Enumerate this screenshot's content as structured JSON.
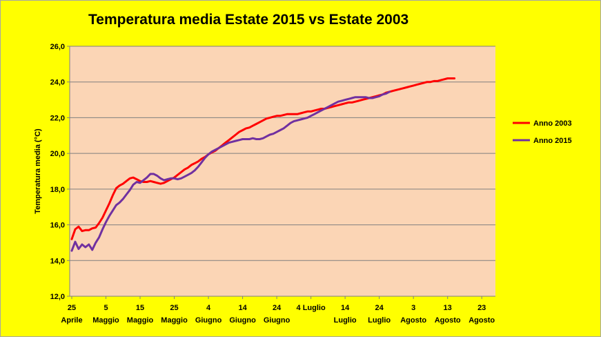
{
  "chart_data": {
    "type": "line",
    "title": "Temperatura media Estate 2015 vs Estate 2003",
    "ylabel": "Temperatura media  (°C)",
    "xlabel": "",
    "ylim": [
      12.0,
      26.0
    ],
    "yticks": [
      "12,0",
      "14,0",
      "16,0",
      "18,0",
      "20,0",
      "22,0",
      "24,0",
      "26,0"
    ],
    "xlim": [
      0,
      124
    ],
    "xticks": [
      {
        "day": 0,
        "line1": "25",
        "line2": "Aprile"
      },
      {
        "day": 10,
        "line1": "5",
        "line2": "Maggio"
      },
      {
        "day": 20,
        "line1": "15",
        "line2": "Maggio"
      },
      {
        "day": 30,
        "line1": "25",
        "line2": "Maggio"
      },
      {
        "day": 40,
        "line1": "4",
        "line2": "Giugno"
      },
      {
        "day": 50,
        "line1": "14",
        "line2": "Giugno"
      },
      {
        "day": 60,
        "line1": "24",
        "line2": "Giugno"
      },
      {
        "day": 70,
        "line1": "4 Luglio",
        "line2": ""
      },
      {
        "day": 80,
        "line1": "14",
        "line2": "Luglio"
      },
      {
        "day": 90,
        "line1": "24",
        "line2": "Luglio"
      },
      {
        "day": 100,
        "line1": "3",
        "line2": "Agosto"
      },
      {
        "day": 110,
        "line1": "13",
        "line2": "Agosto"
      },
      {
        "day": 120,
        "line1": "23",
        "line2": "Agosto"
      }
    ],
    "grid": true,
    "legend_position": "right",
    "series": [
      {
        "name": "Anno 2003",
        "color": "#ff0000",
        "points": [
          [
            0,
            15.2
          ],
          [
            1,
            15.75
          ],
          [
            2,
            15.9
          ],
          [
            3,
            15.65
          ],
          [
            4,
            15.7
          ],
          [
            5,
            15.7
          ],
          [
            6,
            15.8
          ],
          [
            7,
            15.85
          ],
          [
            8,
            16.1
          ],
          [
            9,
            16.4
          ],
          [
            10,
            16.8
          ],
          [
            11,
            17.2
          ],
          [
            12,
            17.65
          ],
          [
            13,
            18.05
          ],
          [
            14,
            18.2
          ],
          [
            15,
            18.3
          ],
          [
            16,
            18.45
          ],
          [
            17,
            18.6
          ],
          [
            18,
            18.65
          ],
          [
            19,
            18.55
          ],
          [
            20,
            18.45
          ],
          [
            21,
            18.4
          ],
          [
            22,
            18.4
          ],
          [
            23,
            18.45
          ],
          [
            24,
            18.4
          ],
          [
            25,
            18.35
          ],
          [
            26,
            18.3
          ],
          [
            27,
            18.35
          ],
          [
            28,
            18.45
          ],
          [
            29,
            18.55
          ],
          [
            30,
            18.65
          ],
          [
            31,
            18.8
          ],
          [
            32,
            18.95
          ],
          [
            33,
            19.1
          ],
          [
            34,
            19.2
          ],
          [
            35,
            19.35
          ],
          [
            36,
            19.45
          ],
          [
            37,
            19.55
          ],
          [
            38,
            19.7
          ],
          [
            39,
            19.8
          ],
          [
            40,
            19.95
          ],
          [
            41,
            20.05
          ],
          [
            42,
            20.15
          ],
          [
            43,
            20.3
          ],
          [
            44,
            20.45
          ],
          [
            45,
            20.6
          ],
          [
            46,
            20.75
          ],
          [
            47,
            20.9
          ],
          [
            48,
            21.05
          ],
          [
            49,
            21.2
          ],
          [
            50,
            21.3
          ],
          [
            51,
            21.4
          ],
          [
            52,
            21.45
          ],
          [
            53,
            21.55
          ],
          [
            54,
            21.65
          ],
          [
            55,
            21.75
          ],
          [
            56,
            21.85
          ],
          [
            57,
            21.95
          ],
          [
            58,
            22.0
          ],
          [
            59,
            22.05
          ],
          [
            60,
            22.1
          ],
          [
            61,
            22.1
          ],
          [
            62,
            22.15
          ],
          [
            63,
            22.2
          ],
          [
            64,
            22.2
          ],
          [
            65,
            22.2
          ],
          [
            66,
            22.2
          ],
          [
            67,
            22.25
          ],
          [
            68,
            22.3
          ],
          [
            69,
            22.35
          ],
          [
            70,
            22.35
          ],
          [
            71,
            22.4
          ],
          [
            72,
            22.45
          ],
          [
            73,
            22.5
          ],
          [
            74,
            22.5
          ],
          [
            75,
            22.55
          ],
          [
            76,
            22.6
          ],
          [
            77,
            22.65
          ],
          [
            78,
            22.7
          ],
          [
            79,
            22.75
          ],
          [
            80,
            22.8
          ],
          [
            81,
            22.85
          ],
          [
            82,
            22.85
          ],
          [
            83,
            22.9
          ],
          [
            84,
            22.95
          ],
          [
            85,
            23.0
          ],
          [
            86,
            23.05
          ],
          [
            87,
            23.1
          ],
          [
            88,
            23.15
          ],
          [
            89,
            23.2
          ],
          [
            90,
            23.25
          ],
          [
            91,
            23.3
          ],
          [
            92,
            23.4
          ],
          [
            93,
            23.45
          ],
          [
            94,
            23.5
          ],
          [
            95,
            23.55
          ],
          [
            96,
            23.6
          ],
          [
            97,
            23.65
          ],
          [
            98,
            23.7
          ],
          [
            99,
            23.75
          ],
          [
            100,
            23.8
          ],
          [
            101,
            23.85
          ],
          [
            102,
            23.9
          ],
          [
            103,
            23.95
          ],
          [
            104,
            24.0
          ],
          [
            105,
            24.0
          ],
          [
            106,
            24.05
          ],
          [
            107,
            24.05
          ],
          [
            108,
            24.1
          ],
          [
            109,
            24.15
          ],
          [
            110,
            24.2
          ],
          [
            111,
            24.2
          ],
          [
            112,
            24.2
          ]
        ]
      },
      {
        "name": "Anno 2015",
        "color": "#7030a0",
        "points": [
          [
            0,
            14.55
          ],
          [
            1,
            15.05
          ],
          [
            2,
            14.65
          ],
          [
            3,
            14.9
          ],
          [
            4,
            14.75
          ],
          [
            5,
            14.9
          ],
          [
            6,
            14.6
          ],
          [
            7,
            15.0
          ],
          [
            8,
            15.3
          ],
          [
            9,
            15.75
          ],
          [
            10,
            16.15
          ],
          [
            11,
            16.5
          ],
          [
            12,
            16.8
          ],
          [
            13,
            17.1
          ],
          [
            14,
            17.25
          ],
          [
            15,
            17.45
          ],
          [
            16,
            17.7
          ],
          [
            17,
            17.95
          ],
          [
            18,
            18.25
          ],
          [
            19,
            18.4
          ],
          [
            20,
            18.35
          ],
          [
            21,
            18.5
          ],
          [
            22,
            18.65
          ],
          [
            23,
            18.85
          ],
          [
            24,
            18.85
          ],
          [
            25,
            18.75
          ],
          [
            26,
            18.6
          ],
          [
            27,
            18.5
          ],
          [
            28,
            18.55
          ],
          [
            29,
            18.6
          ],
          [
            30,
            18.6
          ],
          [
            31,
            18.55
          ],
          [
            32,
            18.6
          ],
          [
            33,
            18.7
          ],
          [
            34,
            18.8
          ],
          [
            35,
            18.9
          ],
          [
            36,
            19.05
          ],
          [
            37,
            19.25
          ],
          [
            38,
            19.5
          ],
          [
            39,
            19.75
          ],
          [
            40,
            19.95
          ],
          [
            41,
            20.1
          ],
          [
            42,
            20.2
          ],
          [
            43,
            20.3
          ],
          [
            44,
            20.4
          ],
          [
            45,
            20.5
          ],
          [
            46,
            20.6
          ],
          [
            47,
            20.65
          ],
          [
            48,
            20.7
          ],
          [
            49,
            20.75
          ],
          [
            50,
            20.8
          ],
          [
            51,
            20.8
          ],
          [
            52,
            20.8
          ],
          [
            53,
            20.85
          ],
          [
            54,
            20.8
          ],
          [
            55,
            20.8
          ],
          [
            56,
            20.85
          ],
          [
            57,
            20.95
          ],
          [
            58,
            21.05
          ],
          [
            59,
            21.1
          ],
          [
            60,
            21.2
          ],
          [
            61,
            21.3
          ],
          [
            62,
            21.4
          ],
          [
            63,
            21.55
          ],
          [
            64,
            21.7
          ],
          [
            65,
            21.8
          ],
          [
            66,
            21.85
          ],
          [
            67,
            21.9
          ],
          [
            68,
            21.95
          ],
          [
            69,
            22.0
          ],
          [
            70,
            22.1
          ],
          [
            71,
            22.2
          ],
          [
            72,
            22.3
          ],
          [
            73,
            22.4
          ],
          [
            74,
            22.5
          ],
          [
            75,
            22.6
          ],
          [
            76,
            22.7
          ],
          [
            77,
            22.8
          ],
          [
            78,
            22.9
          ],
          [
            79,
            22.95
          ],
          [
            80,
            23.0
          ],
          [
            81,
            23.05
          ],
          [
            82,
            23.1
          ],
          [
            83,
            23.15
          ],
          [
            84,
            23.15
          ],
          [
            85,
            23.15
          ],
          [
            86,
            23.15
          ],
          [
            87,
            23.1
          ],
          [
            88,
            23.1
          ],
          [
            89,
            23.15
          ],
          [
            90,
            23.2
          ],
          [
            91,
            23.3
          ],
          [
            92,
            23.35
          ],
          [
            93,
            23.45
          ]
        ]
      }
    ]
  }
}
